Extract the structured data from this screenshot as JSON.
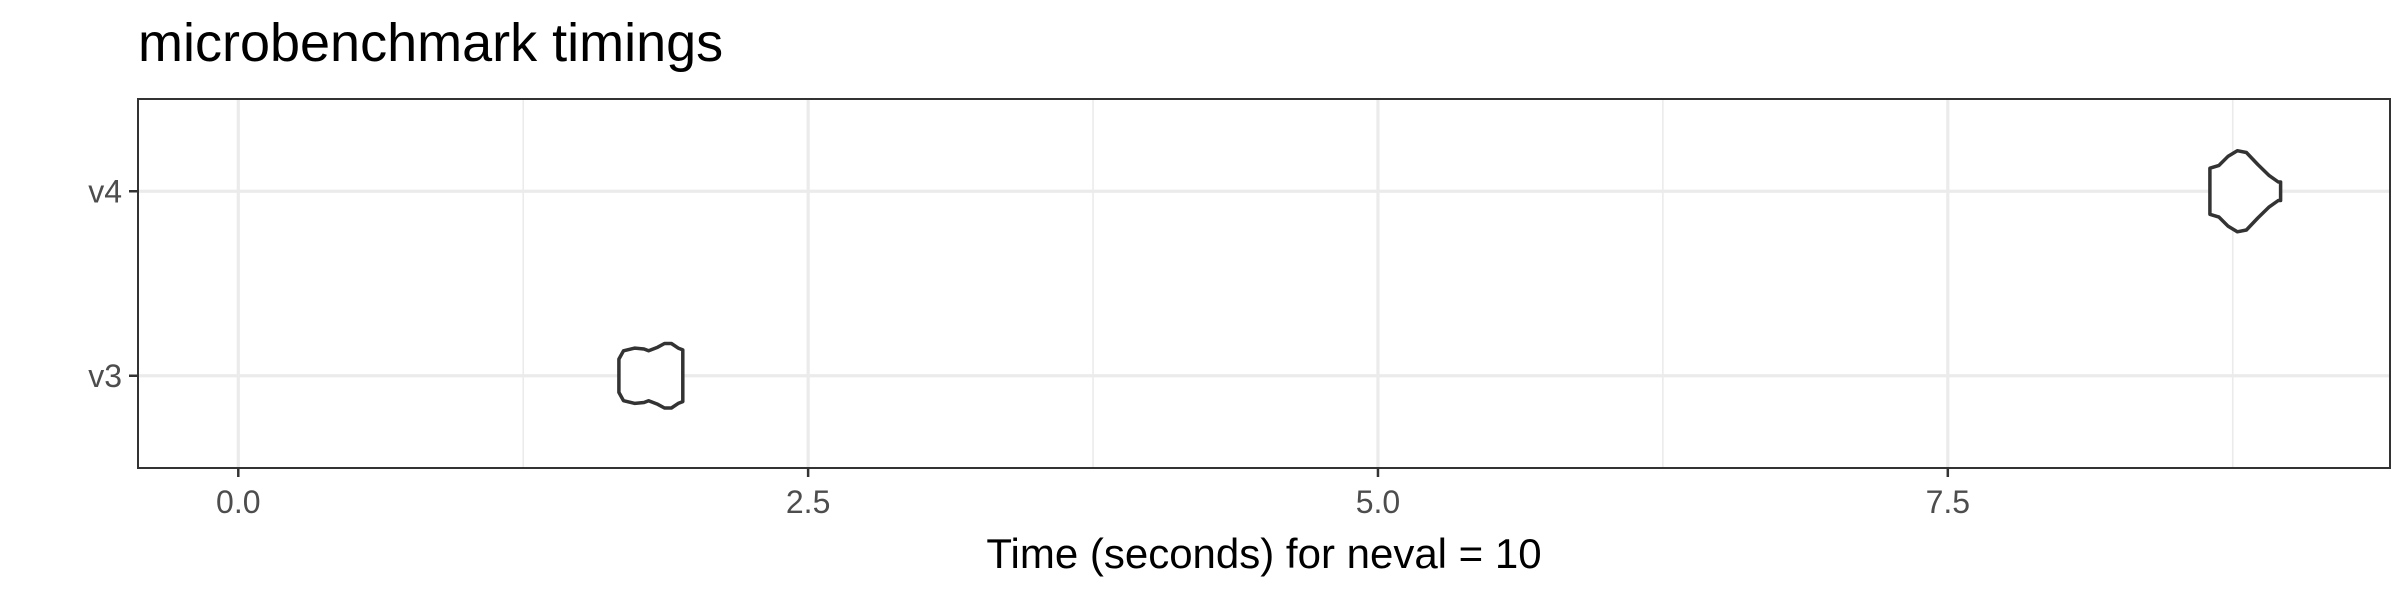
{
  "chart_data": {
    "type": "violin",
    "title": "microbenchmark timings",
    "xlabel": "Time (seconds) for neval = 10",
    "ylabel": "",
    "xlim": [
      -0.44,
      9.44
    ],
    "x_ticks": [
      0.0,
      2.5,
      5.0,
      7.5
    ],
    "x_tick_labels": [
      "0.0",
      "2.5",
      "5.0",
      "7.5"
    ],
    "x_minor_ticks": [
      1.25,
      3.75,
      6.25,
      8.75
    ],
    "categories": [
      "v3",
      "v4"
    ],
    "grid": true,
    "series": [
      {
        "category": "v3",
        "profile": [
          {
            "t": 1.67,
            "w": 0.18
          },
          {
            "t": 1.69,
            "w": 0.27
          },
          {
            "t": 1.74,
            "w": 0.3
          },
          {
            "t": 1.78,
            "w": 0.29
          },
          {
            "t": 1.8,
            "w": 0.27
          },
          {
            "t": 1.84,
            "w": 0.31
          },
          {
            "t": 1.87,
            "w": 0.35
          },
          {
            "t": 1.9,
            "w": 0.35
          },
          {
            "t": 1.93,
            "w": 0.3
          },
          {
            "t": 1.95,
            "w": 0.28
          }
        ]
      },
      {
        "category": "v4",
        "profile": [
          {
            "t": 8.65,
            "w": 0.25
          },
          {
            "t": 8.69,
            "w": 0.28
          },
          {
            "t": 8.73,
            "w": 0.38
          },
          {
            "t": 8.77,
            "w": 0.44
          },
          {
            "t": 8.81,
            "w": 0.42
          },
          {
            "t": 8.86,
            "w": 0.29
          },
          {
            "t": 8.91,
            "w": 0.17
          },
          {
            "t": 8.95,
            "w": 0.1
          },
          {
            "t": 8.96,
            "w": 0.1
          }
        ]
      }
    ]
  }
}
